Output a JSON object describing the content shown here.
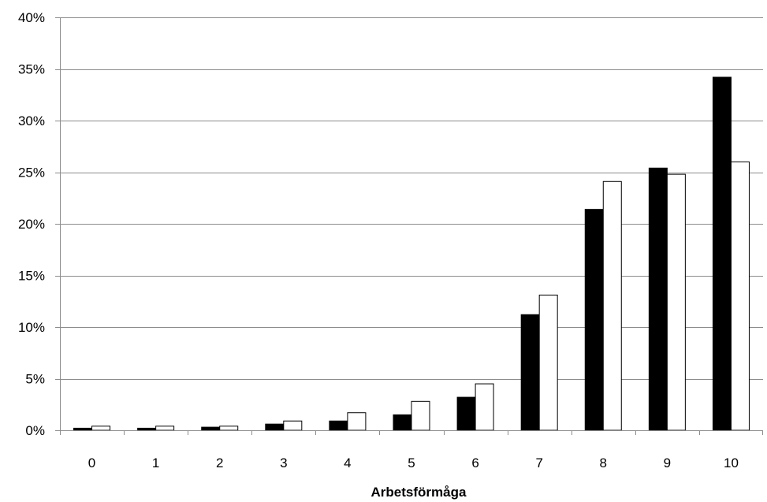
{
  "chart_data": {
    "type": "bar",
    "xlabel": "Arbetsförmåga",
    "ylabel": "",
    "categories": [
      "0",
      "1",
      "2",
      "3",
      "4",
      "5",
      "6",
      "7",
      "8",
      "9",
      "10"
    ],
    "series": [
      {
        "color": "#000000",
        "values": [
          0.2,
          0.2,
          0.3,
          0.6,
          0.9,
          1.5,
          3.2,
          11.2,
          21.4,
          25.4,
          34.2
        ]
      },
      {
        "color": "#ffffff",
        "values": [
          0.4,
          0.4,
          0.4,
          0.9,
          1.7,
          2.8,
          4.5,
          13.1,
          24.1,
          24.8,
          26.0
        ]
      }
    ],
    "ylim": [
      0,
      40
    ],
    "yticks": [
      0,
      5,
      10,
      15,
      20,
      25,
      30,
      35,
      40
    ],
    "ytick_labels": [
      "0%",
      "5%",
      "10%",
      "15%",
      "20%",
      "25%",
      "30%",
      "35%",
      "40%"
    ],
    "grid": true,
    "legend": "none"
  }
}
